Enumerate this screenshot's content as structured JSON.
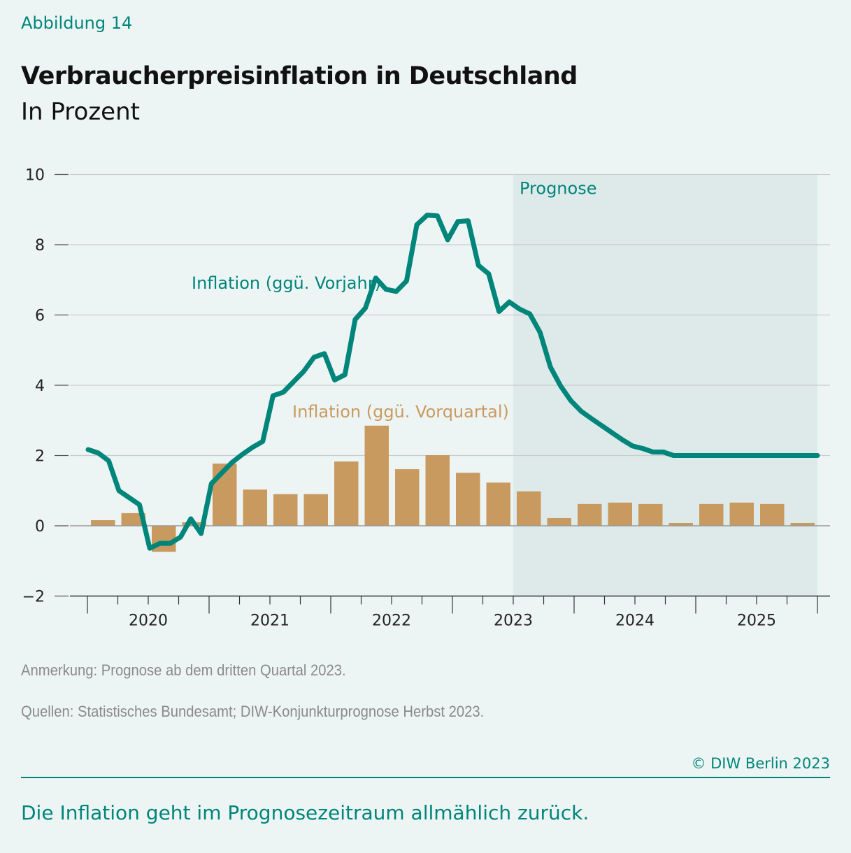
{
  "figure_label": "Abbildung 14",
  "title": "Verbraucherpreisinflation in Deutschland",
  "subtitle": "In Prozent",
  "notes": {
    "remark": "Anmerkung: Prognose ab dem dritten Quartal 2023.",
    "sources": "Quellen: Statistisches Bundesamt; DIW-Konjunkturprognose Herbst 2023."
  },
  "copyright": "© DIW Berlin 2023",
  "caption": "Die Inflation geht im Prognosezeitraum allmählich zurück.",
  "colors": {
    "line": "#00857a",
    "bars": "#c99a60",
    "forecast_shade": "#deeaea",
    "background": "#edf5f4"
  },
  "chart_data": {
    "type": "bar+line",
    "ylim": [
      -2,
      10
    ],
    "yticks": [
      "−2",
      "0",
      "2",
      "4",
      "6",
      "8",
      "10"
    ],
    "ytick_values": [
      -2,
      0,
      2,
      4,
      6,
      8,
      10
    ],
    "grid": true,
    "xtick_labels": [
      "2020",
      "2021",
      "2022",
      "2023",
      "2024",
      "2025"
    ],
    "forecast": {
      "label": "Prognose",
      "start": "2023Q3",
      "end": "2025Q4"
    },
    "series": [
      {
        "name": "Inflation (ggü. Vorquartal)",
        "type": "bar",
        "frequency": "quarterly",
        "x": [
          "2020Q1",
          "2020Q2",
          "2020Q3",
          "2020Q4",
          "2021Q1",
          "2021Q2",
          "2021Q3",
          "2021Q4",
          "2022Q1",
          "2022Q2",
          "2022Q3",
          "2022Q4",
          "2023Q1",
          "2023Q2",
          "2023Q3",
          "2023Q4",
          "2024Q1",
          "2024Q2",
          "2024Q3",
          "2024Q4",
          "2025Q1",
          "2025Q2",
          "2025Q3",
          "2025Q4"
        ],
        "values": [
          0.16,
          0.36,
          -0.74,
          0.1,
          1.77,
          1.03,
          0.9,
          0.9,
          1.83,
          2.85,
          1.61,
          2.01,
          1.51,
          1.23,
          0.98,
          0.22,
          0.62,
          0.66,
          0.62,
          0.08,
          0.62,
          0.66,
          0.62,
          0.08
        ]
      },
      {
        "name": "Inflation (ggü. Vorjahr)",
        "type": "line",
        "frequency": "monthly",
        "x_start": "2020-01",
        "values": [
          2.17,
          2.07,
          1.85,
          1.0,
          0.8,
          0.6,
          -0.64,
          -0.5,
          -0.5,
          -0.32,
          0.2,
          -0.22,
          1.2,
          1.5,
          1.8,
          2.03,
          2.23,
          2.4,
          3.7,
          3.8,
          4.1,
          4.4,
          4.8,
          4.9,
          4.15,
          4.3,
          5.87,
          6.2,
          7.05,
          6.73,
          6.67,
          6.97,
          8.57,
          8.84,
          8.82,
          8.14,
          8.66,
          8.68,
          7.41,
          7.17,
          6.1,
          6.37,
          6.17,
          6.03,
          5.5,
          4.52,
          3.98,
          3.56,
          3.26,
          3.05,
          2.85,
          2.65,
          2.45,
          2.27,
          2.2,
          2.1,
          2.1,
          2.0,
          2.0,
          2.0,
          2.0,
          2.0,
          2.0,
          2.0,
          2.0,
          2.0,
          2.0,
          2.0,
          2.0,
          2.0,
          2.0,
          2.0
        ]
      }
    ]
  }
}
